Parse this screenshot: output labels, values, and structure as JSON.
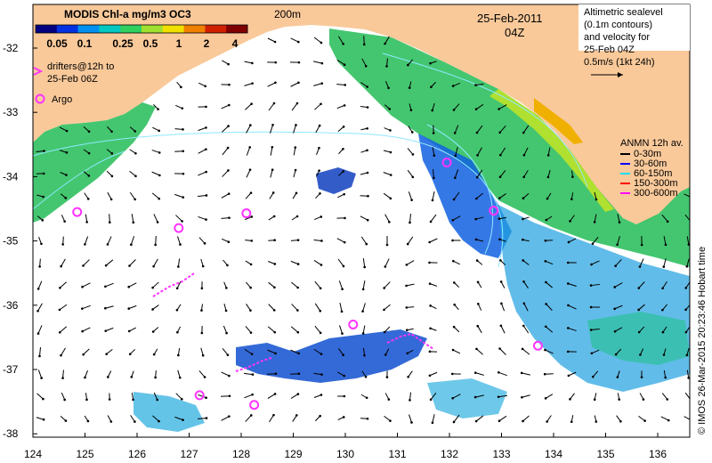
{
  "colorbar": {
    "title": "MODIS Chl-a mg/m3 OC3",
    "ticks": [
      "0.05",
      "0.1",
      "0.25",
      "0.5",
      "1",
      "2",
      "4"
    ],
    "colors": [
      "#000080",
      "#0030e0",
      "#0090f0",
      "#00c8c0",
      "#30d060",
      "#a0e030",
      "#f0e000",
      "#f08000",
      "#d02000",
      "#800000"
    ]
  },
  "depth_label": "200m",
  "date": {
    "line1": "25-Feb-2011",
    "line2": "04Z"
  },
  "altimetry_legend": {
    "lines": [
      "Altimetric sealevel",
      "(0.1m contours)",
      "and velocity for",
      "25-Feb 04Z",
      "0.5m/s (1kt 24h)"
    ]
  },
  "drifters_legend": {
    "lines": [
      "drifters@12h to",
      "25-Feb 06Z"
    ],
    "color": "#ff33ff"
  },
  "argo_legend": {
    "label": "Argo",
    "color": "#ff33ff"
  },
  "anmn_legend": {
    "title": "ANMN 12h av.",
    "items": [
      {
        "label": "0-30m",
        "color": "#000000"
      },
      {
        "label": "30-60m",
        "color": "#0000ff"
      },
      {
        "label": "60-150m",
        "color": "#00e0ff"
      },
      {
        "label": "150-300m",
        "color": "#ff0000"
      },
      {
        "label": "300-600m",
        "color": "#ff00ff"
      }
    ]
  },
  "axes": {
    "x_ticks": [
      "124",
      "125",
      "126",
      "127",
      "128",
      "129",
      "130",
      "131",
      "132",
      "133",
      "134",
      "135",
      "136"
    ],
    "y_ticks": [
      "-32",
      "-33",
      "-34",
      "-35",
      "-36",
      "-37",
      "-38"
    ]
  },
  "credit": "© IMOS 26-Mar-2015 20:23:46 Hobart time",
  "argo_floats": [
    {
      "lon": 124.85,
      "lat": -34.55
    },
    {
      "lon": 126.8,
      "lat": -34.8
    },
    {
      "lon": 128.1,
      "lat": -34.57
    },
    {
      "lon": 131.95,
      "lat": -33.78
    },
    {
      "lon": 132.85,
      "lat": -34.53
    },
    {
      "lon": 130.15,
      "lat": -36.3
    },
    {
      "lon": 133.7,
      "lat": -36.63
    },
    {
      "lon": 127.2,
      "lat": -37.4
    },
    {
      "lon": 128.25,
      "lat": -37.55
    }
  ],
  "colors": {
    "land": "#f9c99a",
    "ocean": "#ffffff",
    "arrow": "#000000",
    "contour": "#8fe8ff"
  }
}
